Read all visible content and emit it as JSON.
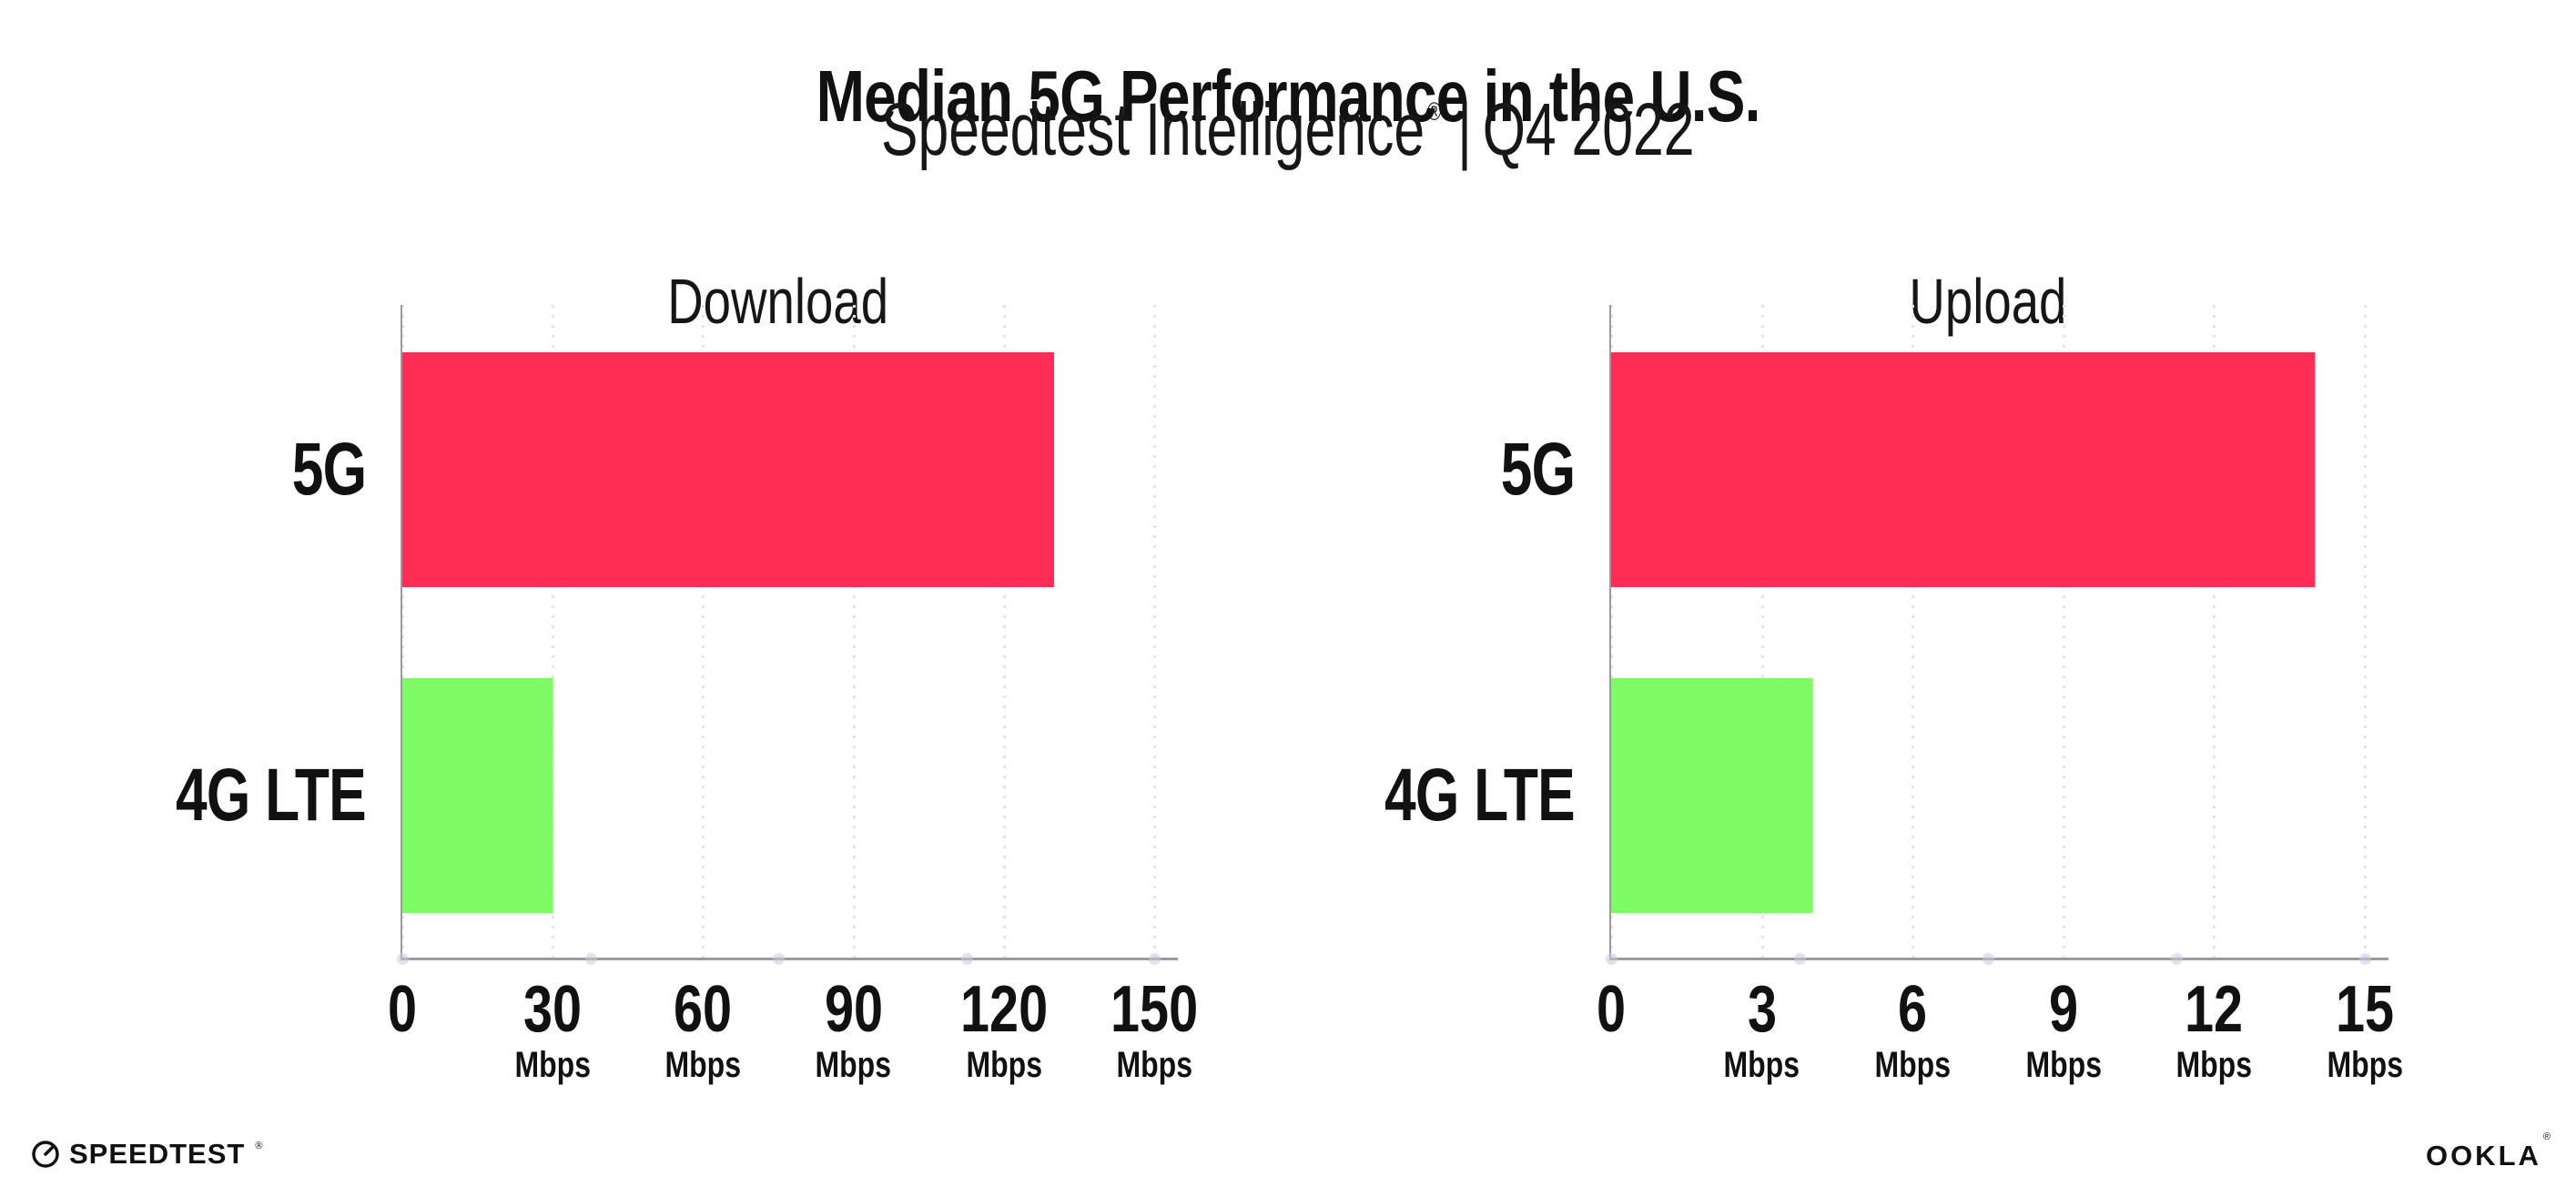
{
  "header": {
    "title": "Median 5G Performance in the U.S.",
    "subtitle": {
      "brand": "Speedtest Intelligence",
      "registered_mark": "®",
      "separator": "|",
      "period": "Q4 2022"
    }
  },
  "colors": {
    "bar_5g": "#FF2D55",
    "bar_4g_lte": "#7DFA64",
    "axis_line": "#9b9b9f",
    "gridline_dots": "#e3e3ee",
    "text": "#111111"
  },
  "chart_data": [
    {
      "type": "bar",
      "orientation": "horizontal",
      "title": "Download",
      "categories": [
        "5G",
        "4G LTE"
      ],
      "values": [
        130,
        30
      ],
      "unit": "Mbps",
      "xlim": [
        0,
        150
      ],
      "xticks": [
        0,
        30,
        60,
        90,
        120,
        150
      ],
      "bar_colors": [
        "#FF2D55",
        "#7DFA64"
      ],
      "grid": "dotted-vertical-on",
      "legend": "none"
    },
    {
      "type": "bar",
      "orientation": "horizontal",
      "title": "Upload",
      "categories": [
        "5G",
        "4G LTE"
      ],
      "values": [
        14,
        4
      ],
      "unit": "Mbps",
      "xlim": [
        0,
        15
      ],
      "xticks": [
        0,
        3,
        6,
        9,
        12,
        15
      ],
      "bar_colors": [
        "#FF2D55",
        "#7DFA64"
      ],
      "grid": "dotted-vertical-on",
      "legend": "none"
    }
  ],
  "footer": {
    "speedtest_logo_text": "SPEEDTEST",
    "speedtest_mark": "®",
    "ookla_logo_text": "OOKLA",
    "ookla_mark": "®"
  }
}
